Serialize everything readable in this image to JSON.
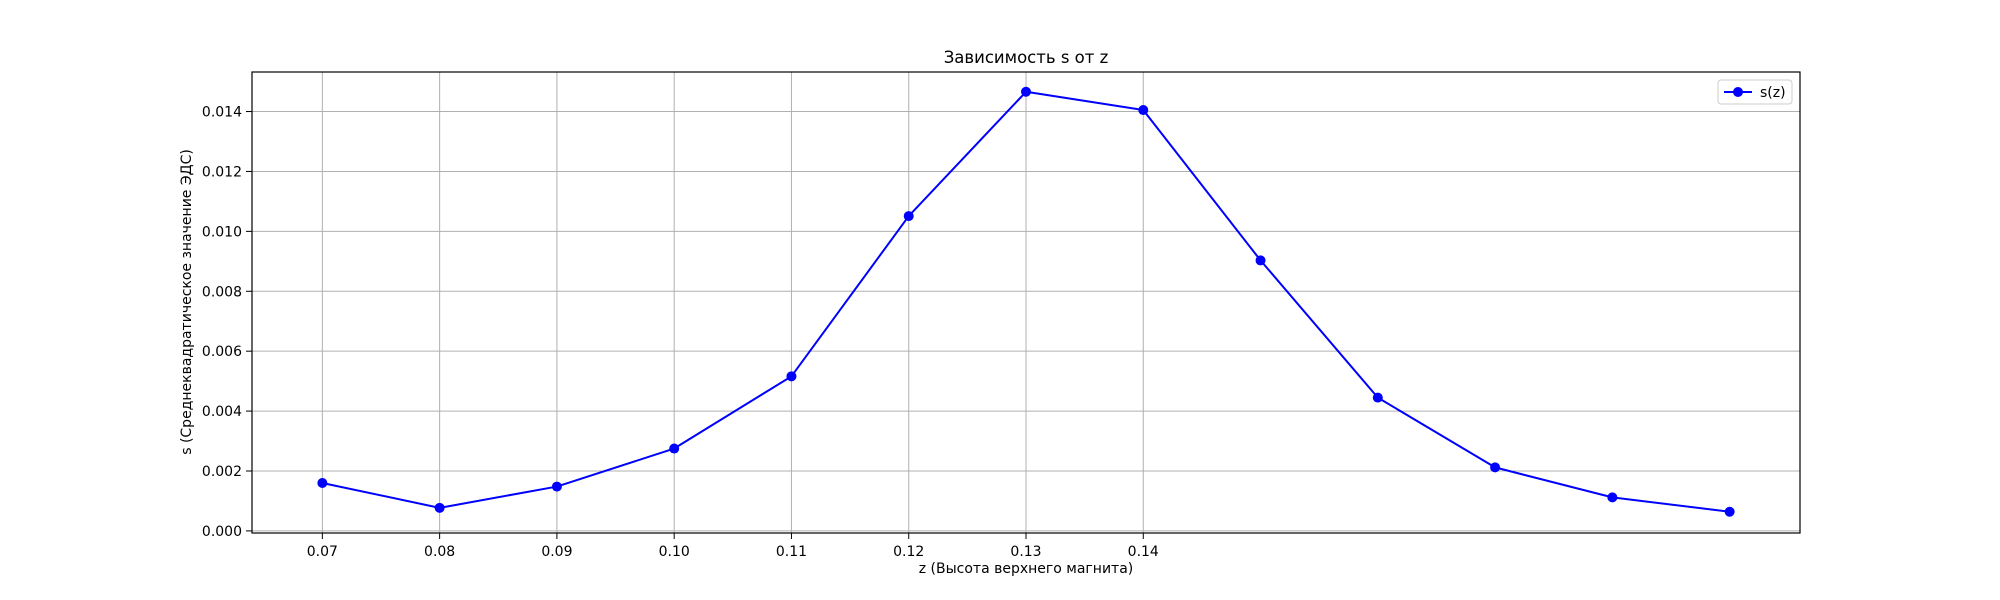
{
  "chart_data": {
    "type": "line",
    "title": "Зависимость s от z",
    "xlabel": "z (Высота верхнего магнита)",
    "ylabel": "s (Среднеквадратическое значение ЭДС)",
    "x": [
      0.07,
      0.08,
      0.09,
      0.1,
      0.11,
      0.12,
      0.13,
      0.14,
      0.15,
      0.16,
      0.17,
      0.18,
      0.19
    ],
    "series": [
      {
        "name": "s(z)",
        "color": "#0000ff",
        "values": [
          0.0016,
          0.00077,
          0.00148,
          0.00275,
          0.00516,
          0.01051,
          0.01466,
          0.01405,
          0.00903,
          0.00445,
          0.00212,
          0.00112,
          0.00064
        ]
      }
    ],
    "xticks": [
      "0.07",
      "0.08",
      "0.09",
      "0.10",
      "0.11",
      "0.12",
      "0.13",
      "0.14"
    ],
    "xtick_values": [
      0.07,
      0.08,
      0.09,
      0.1,
      0.11,
      0.12,
      0.13,
      0.14
    ],
    "yticks": [
      "0.000",
      "0.002",
      "0.004",
      "0.006",
      "0.008",
      "0.010",
      "0.012",
      "0.014"
    ],
    "ytick_values": [
      0.0,
      0.002,
      0.004,
      0.006,
      0.008,
      0.01,
      0.012,
      0.014
    ],
    "xlim": [
      0.064,
      0.196
    ],
    "ylim": [
      -7e-05,
      0.01532
    ],
    "grid": true,
    "legend_position": "top-right",
    "marker": "circle"
  }
}
